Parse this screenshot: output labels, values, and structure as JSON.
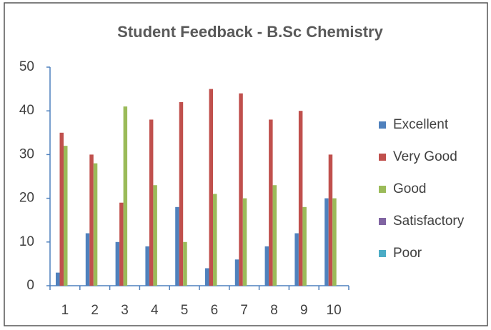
{
  "chart_data": {
    "type": "bar",
    "title": "Student Feedback - B.Sc Chemistry",
    "categories": [
      "1",
      "2",
      "3",
      "4",
      "5",
      "6",
      "7",
      "8",
      "9",
      "10"
    ],
    "series": [
      {
        "name": "Excellent",
        "color": "#4f81bd",
        "values": [
          3,
          12,
          10,
          9,
          18,
          4,
          6,
          9,
          12,
          20
        ]
      },
      {
        "name": "Very Good",
        "color": "#c0504d",
        "values": [
          35,
          30,
          19,
          38,
          42,
          45,
          44,
          38,
          40,
          30
        ]
      },
      {
        "name": "Good",
        "color": "#9bbb59",
        "values": [
          32,
          28,
          41,
          23,
          10,
          21,
          20,
          23,
          18,
          20
        ]
      },
      {
        "name": "Satisfactory",
        "color": "#8064a2",
        "values": [
          0,
          0,
          0,
          0,
          0,
          0,
          0,
          0,
          0,
          0
        ]
      },
      {
        "name": "Poor",
        "color": "#4bacc6",
        "values": [
          0,
          0,
          0,
          0,
          0,
          0,
          0,
          0,
          0,
          0
        ]
      }
    ],
    "ylim": [
      0,
      50
    ],
    "yticks": [
      0,
      10,
      20,
      30,
      40,
      50
    ],
    "grid": false,
    "legend": "right"
  }
}
